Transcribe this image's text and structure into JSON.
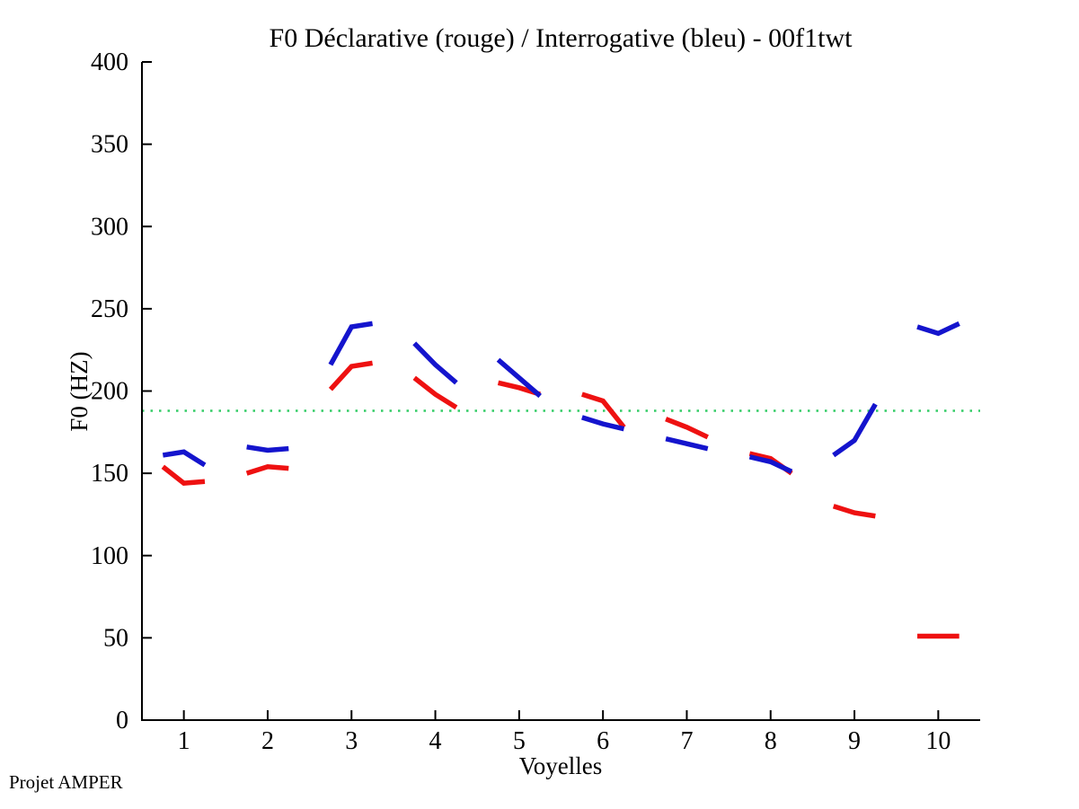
{
  "page": {
    "title": "F0 Déclarative (rouge) / Interrogative (bleu) - 00f1twt",
    "footer": "Projet AMPER"
  },
  "chart_data": {
    "type": "line",
    "title": "F0 Déclarative (rouge) / Interrogative (bleu) - 00f1twt",
    "xlabel": "Voyelles",
    "ylabel": "F0 (HZ)",
    "xlim": [
      0.5,
      10.5
    ],
    "ylim": [
      0,
      400
    ],
    "xticks": [
      "1",
      "2",
      "3",
      "4",
      "5",
      "6",
      "7",
      "8",
      "9",
      "10"
    ],
    "yticks": [
      "0",
      "50",
      "100",
      "150",
      "200",
      "250",
      "300",
      "350",
      "400"
    ],
    "grid": false,
    "legend_position": "none",
    "reference_line": {
      "y": 188,
      "color": "#33cc66",
      "style": "dotted"
    },
    "series": [
      {
        "name": "Déclarative (rouge)",
        "color": "#ee1111",
        "segments": [
          {
            "vowel": 1,
            "x": [
              0.75,
              1.0,
              1.25
            ],
            "f0": [
              154,
              144,
              145
            ]
          },
          {
            "vowel": 2,
            "x": [
              1.75,
              2.0,
              2.25
            ],
            "f0": [
              150,
              154,
              153
            ]
          },
          {
            "vowel": 3,
            "x": [
              2.75,
              3.0,
              3.25
            ],
            "f0": [
              201,
              215,
              217
            ]
          },
          {
            "vowel": 4,
            "x": [
              3.75,
              4.0,
              4.25
            ],
            "f0": [
              208,
              198,
              190
            ]
          },
          {
            "vowel": 5,
            "x": [
              4.75,
              5.0,
              5.25
            ],
            "f0": [
              205,
              202,
              198
            ]
          },
          {
            "vowel": 6,
            "x": [
              5.75,
              6.0,
              6.25
            ],
            "f0": [
              198,
              194,
              178
            ]
          },
          {
            "vowel": 7,
            "x": [
              6.75,
              7.0,
              7.25
            ],
            "f0": [
              183,
              178,
              172
            ]
          },
          {
            "vowel": 8,
            "x": [
              7.75,
              8.0,
              8.25
            ],
            "f0": [
              162,
              159,
              150
            ]
          },
          {
            "vowel": 9,
            "x": [
              8.75,
              9.0,
              9.25
            ],
            "f0": [
              130,
              126,
              124
            ]
          },
          {
            "vowel": 10,
            "x": [
              9.75,
              10.0,
              10.25
            ],
            "f0": [
              51,
              51,
              51
            ]
          }
        ]
      },
      {
        "name": "Interrogative (bleu)",
        "color": "#1414cd",
        "segments": [
          {
            "vowel": 1,
            "x": [
              0.75,
              1.0,
              1.25
            ],
            "f0": [
              161,
              163,
              155
            ]
          },
          {
            "vowel": 2,
            "x": [
              1.75,
              2.0,
              2.25
            ],
            "f0": [
              166,
              164,
              165
            ]
          },
          {
            "vowel": 3,
            "x": [
              2.75,
              3.0,
              3.25
            ],
            "f0": [
              216,
              239,
              241
            ]
          },
          {
            "vowel": 4,
            "x": [
              3.75,
              4.0,
              4.25
            ],
            "f0": [
              229,
              216,
              205
            ]
          },
          {
            "vowel": 5,
            "x": [
              4.75,
              5.0,
              5.25
            ],
            "f0": [
              219,
              208,
              197
            ]
          },
          {
            "vowel": 6,
            "x": [
              5.75,
              6.0,
              6.25
            ],
            "f0": [
              184,
              180,
              177
            ]
          },
          {
            "vowel": 7,
            "x": [
              6.75,
              7.0,
              7.25
            ],
            "f0": [
              171,
              168,
              165
            ]
          },
          {
            "vowel": 8,
            "x": [
              7.75,
              8.0,
              8.25
            ],
            "f0": [
              160,
              157,
              151
            ]
          },
          {
            "vowel": 9,
            "x": [
              8.75,
              9.0,
              9.25
            ],
            "f0": [
              161,
              170,
              192
            ]
          },
          {
            "vowel": 10,
            "x": [
              9.75,
              10.0,
              10.25
            ],
            "f0": [
              239,
              235,
              241
            ]
          }
        ]
      }
    ]
  }
}
